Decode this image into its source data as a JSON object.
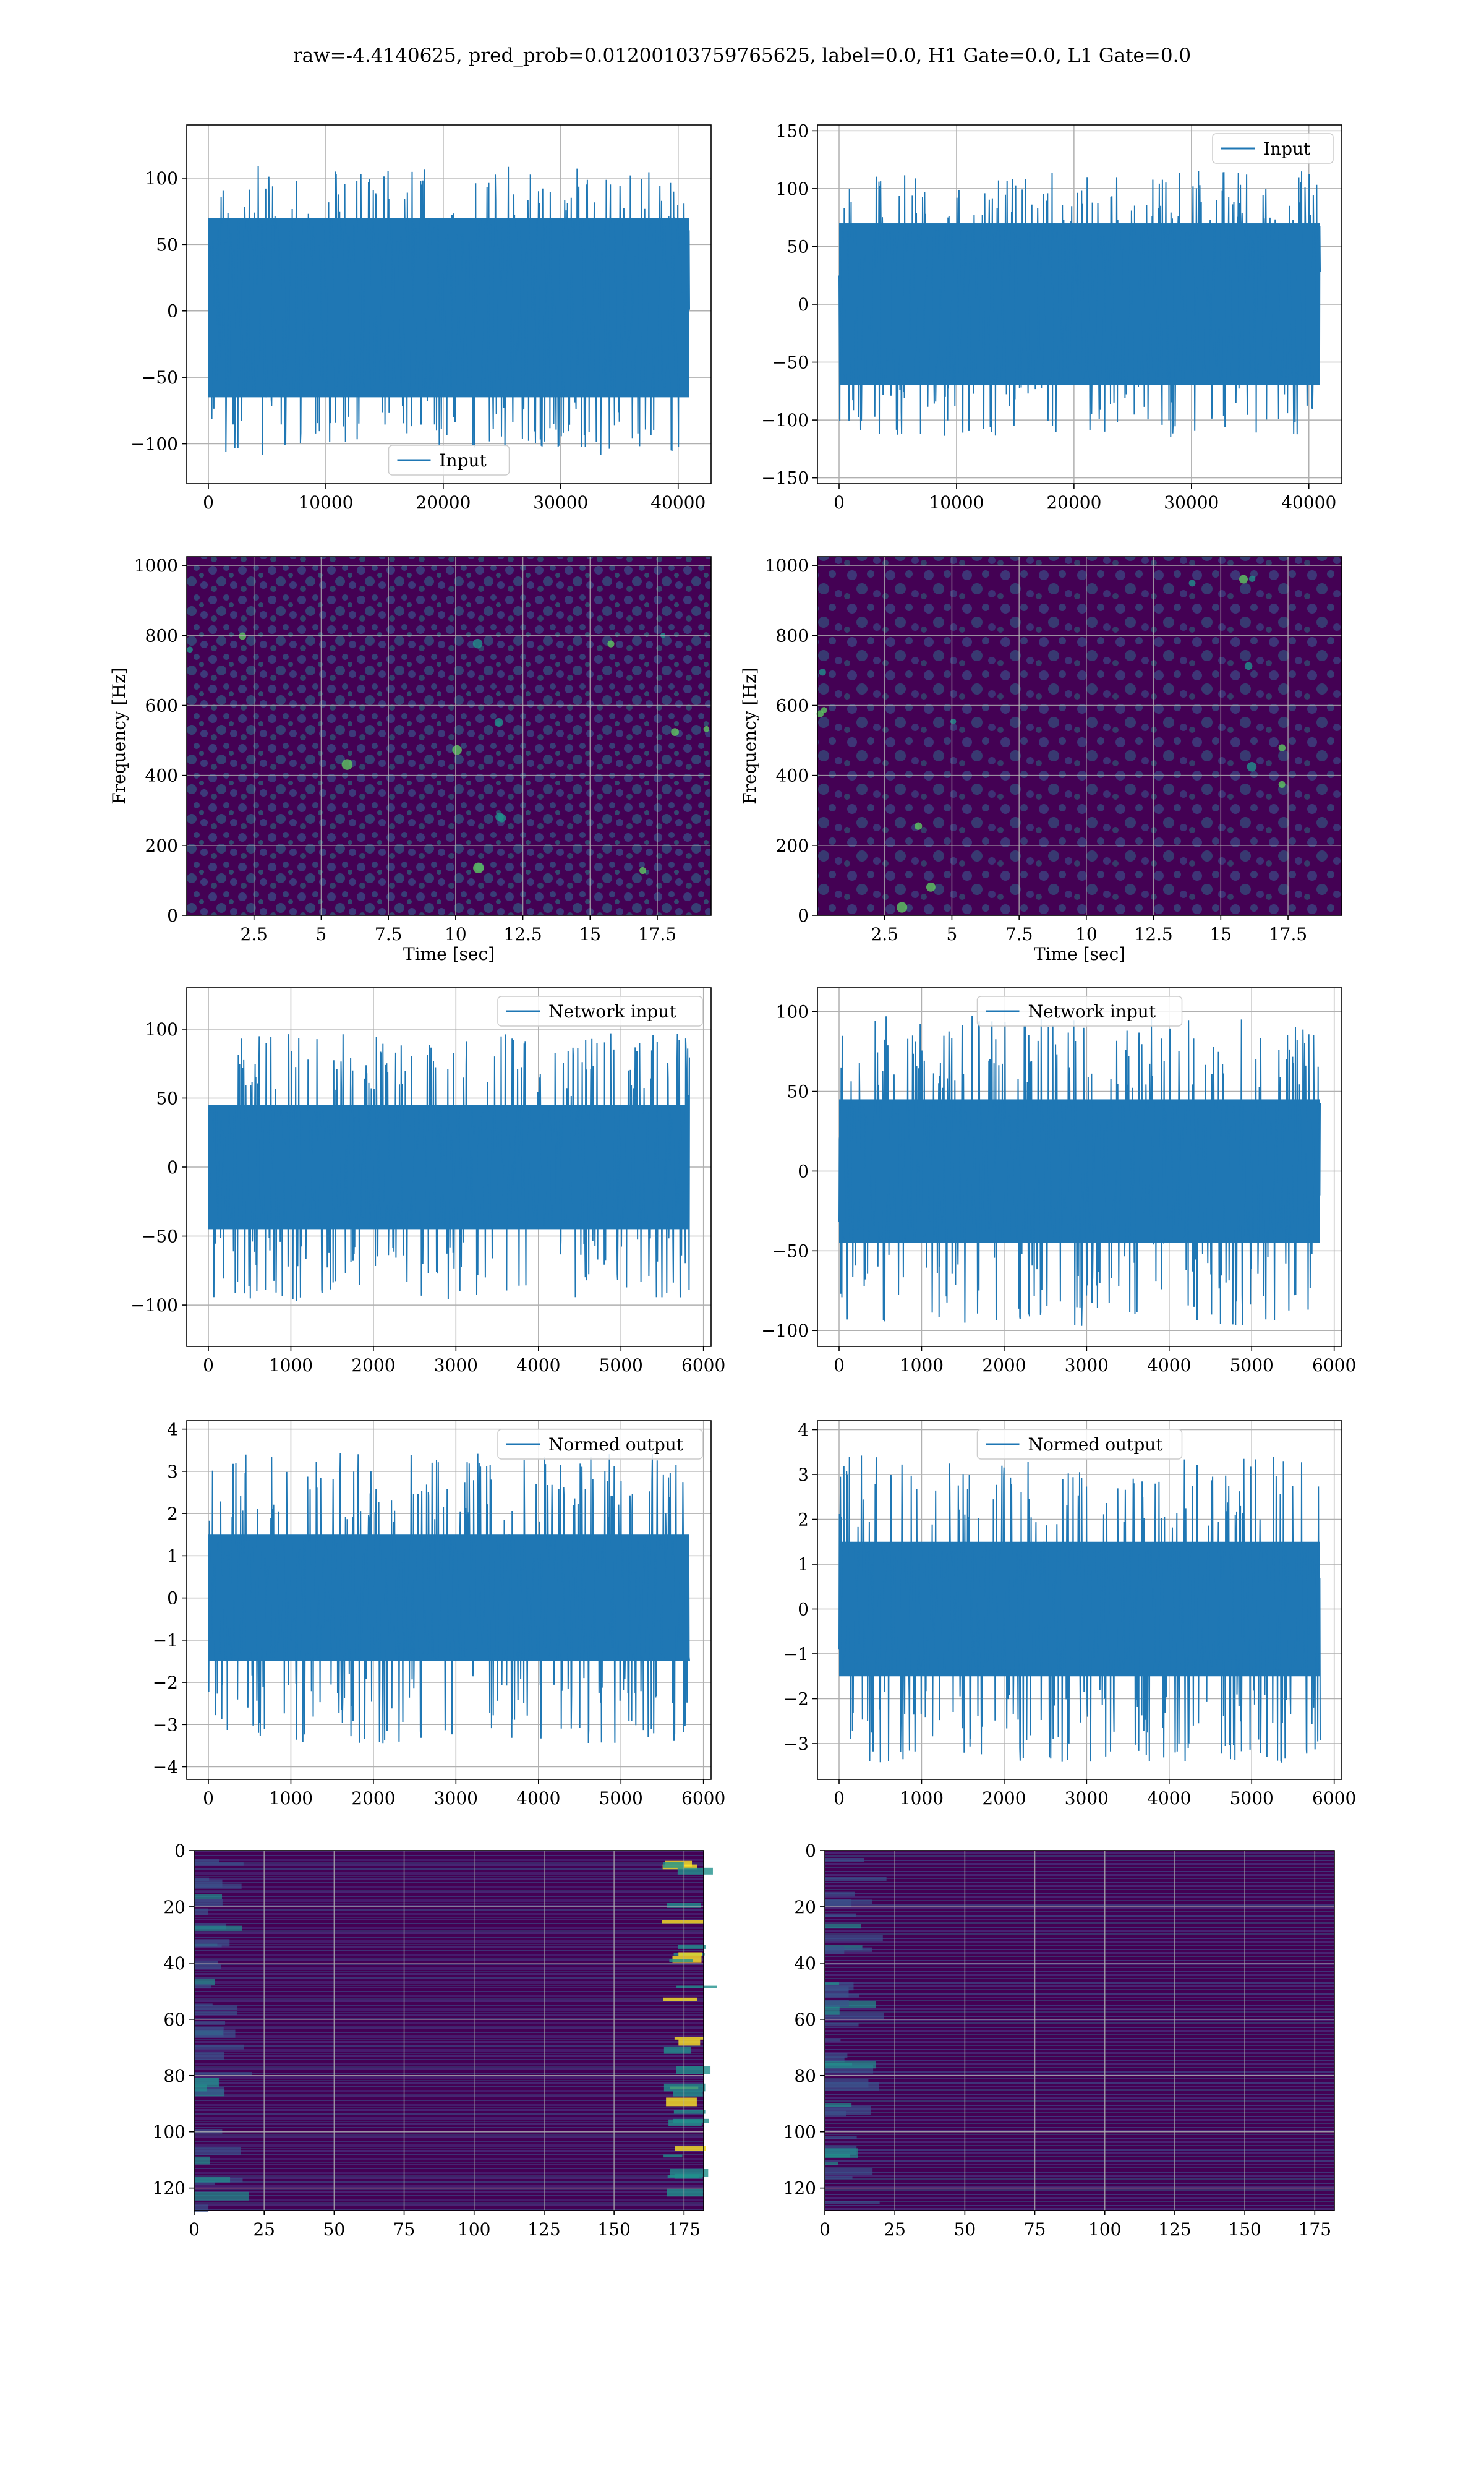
{
  "title": "raw=-4.4140625, pred_prob=0.01200103759765625, label=0.0, H1 Gate=0.0, L1 Gate=0.0",
  "colors": {
    "series": "#1f77b4",
    "grid": "#b0b0b0",
    "heat_low": "#440154",
    "heat_mid": "#21918c",
    "heat_high": "#fde725"
  },
  "chart_data": [
    {
      "id": "r1c1",
      "type": "line",
      "legend": "Input",
      "legend_loc": "lower center",
      "x": {
        "min": 0,
        "max": 40960
      },
      "ylim": [
        -130,
        140
      ],
      "xticks": [
        0,
        10000,
        20000,
        30000,
        40000
      ],
      "yticks": [
        -100,
        -50,
        0,
        50,
        100
      ],
      "envelope": [
        -95,
        95
      ],
      "core": [
        -65,
        70
      ],
      "grid": true
    },
    {
      "id": "r1c2",
      "type": "line",
      "legend": "Input",
      "legend_loc": "upper right",
      "x": {
        "min": 0,
        "max": 40960
      },
      "ylim": [
        -155,
        155
      ],
      "xticks": [
        0,
        10000,
        20000,
        30000,
        40000
      ],
      "yticks": [
        -150,
        -100,
        -50,
        0,
        50,
        100,
        150
      ],
      "envelope": [
        -100,
        100
      ],
      "core": [
        -70,
        70
      ],
      "grid": true
    },
    {
      "id": "r2c1",
      "type": "heatmap",
      "xlabel": "Time [sec]",
      "ylabel": "Frequency [Hz]",
      "xlim": [
        0,
        19.5
      ],
      "ylim": [
        0,
        1025
      ],
      "xticks": [
        2.5,
        5,
        7.5,
        10,
        12.5,
        15,
        17.5
      ],
      "yticks": [
        0,
        200,
        400,
        600,
        800,
        1000
      ],
      "grid": true
    },
    {
      "id": "r2c2",
      "type": "heatmap",
      "xlabel": "Time [sec]",
      "ylabel": "Frequency [Hz]",
      "xlim": [
        0,
        19.5
      ],
      "ylim": [
        0,
        1025
      ],
      "xticks": [
        2.5,
        5,
        7.5,
        10,
        12.5,
        15,
        17.5
      ],
      "yticks": [
        0,
        200,
        400,
        600,
        800,
        1000
      ],
      "grid": true
    },
    {
      "id": "r3c1",
      "type": "line",
      "legend": "Network input",
      "legend_loc": "upper right",
      "x": {
        "min": 0,
        "max": 5830
      },
      "ylim": [
        -130,
        130
      ],
      "xticks": [
        0,
        1000,
        2000,
        3000,
        4000,
        5000,
        6000
      ],
      "yticks": [
        -100,
        -50,
        0,
        50,
        100
      ],
      "envelope": [
        -85,
        85
      ],
      "core": [
        -45,
        45
      ],
      "grid": true
    },
    {
      "id": "r3c2",
      "type": "line",
      "legend": "Network input",
      "legend_loc": "upper center",
      "x": {
        "min": 0,
        "max": 5830
      },
      "ylim": [
        -110,
        115
      ],
      "xticks": [
        0,
        1000,
        2000,
        3000,
        4000,
        5000,
        6000
      ],
      "yticks": [
        -100,
        -50,
        0,
        50,
        100
      ],
      "envelope": [
        -85,
        85
      ],
      "core": [
        -45,
        45
      ],
      "grid": true
    },
    {
      "id": "r4c1",
      "type": "line",
      "legend": "Normed output",
      "legend_loc": "upper right",
      "x": {
        "min": 0,
        "max": 5830
      },
      "ylim": [
        -4.3,
        4.2
      ],
      "xticks": [
        0,
        1000,
        2000,
        3000,
        4000,
        5000,
        6000
      ],
      "yticks": [
        -4,
        -3,
        -2,
        -1,
        0,
        1,
        2,
        3,
        4
      ],
      "envelope": [
        -3,
        3
      ],
      "core": [
        -1.5,
        1.5
      ],
      "grid": true
    },
    {
      "id": "r4c2",
      "type": "line",
      "legend": "Normed output",
      "legend_loc": "upper center",
      "x": {
        "min": 0,
        "max": 5830
      },
      "ylim": [
        -3.8,
        4.2
      ],
      "xticks": [
        0,
        1000,
        2000,
        3000,
        4000,
        5000,
        6000
      ],
      "yticks": [
        -3,
        -2,
        -1,
        0,
        1,
        2,
        3,
        4
      ],
      "envelope": [
        -3,
        3
      ],
      "core": [
        -1.5,
        1.5
      ],
      "grid": true
    },
    {
      "id": "r5c1",
      "type": "heatmap",
      "xlim": [
        0,
        182
      ],
      "ylim": [
        128,
        0
      ],
      "xticks": [
        0,
        25,
        50,
        75,
        100,
        125,
        150,
        175
      ],
      "yticks": [
        0,
        20,
        40,
        60,
        80,
        100,
        120
      ],
      "grid": true
    },
    {
      "id": "r5c2",
      "type": "heatmap",
      "xlim": [
        0,
        182
      ],
      "ylim": [
        128,
        0
      ],
      "xticks": [
        0,
        25,
        50,
        75,
        100,
        125,
        150,
        175
      ],
      "yticks": [
        0,
        20,
        40,
        60,
        80,
        100,
        120
      ],
      "grid": true
    }
  ]
}
